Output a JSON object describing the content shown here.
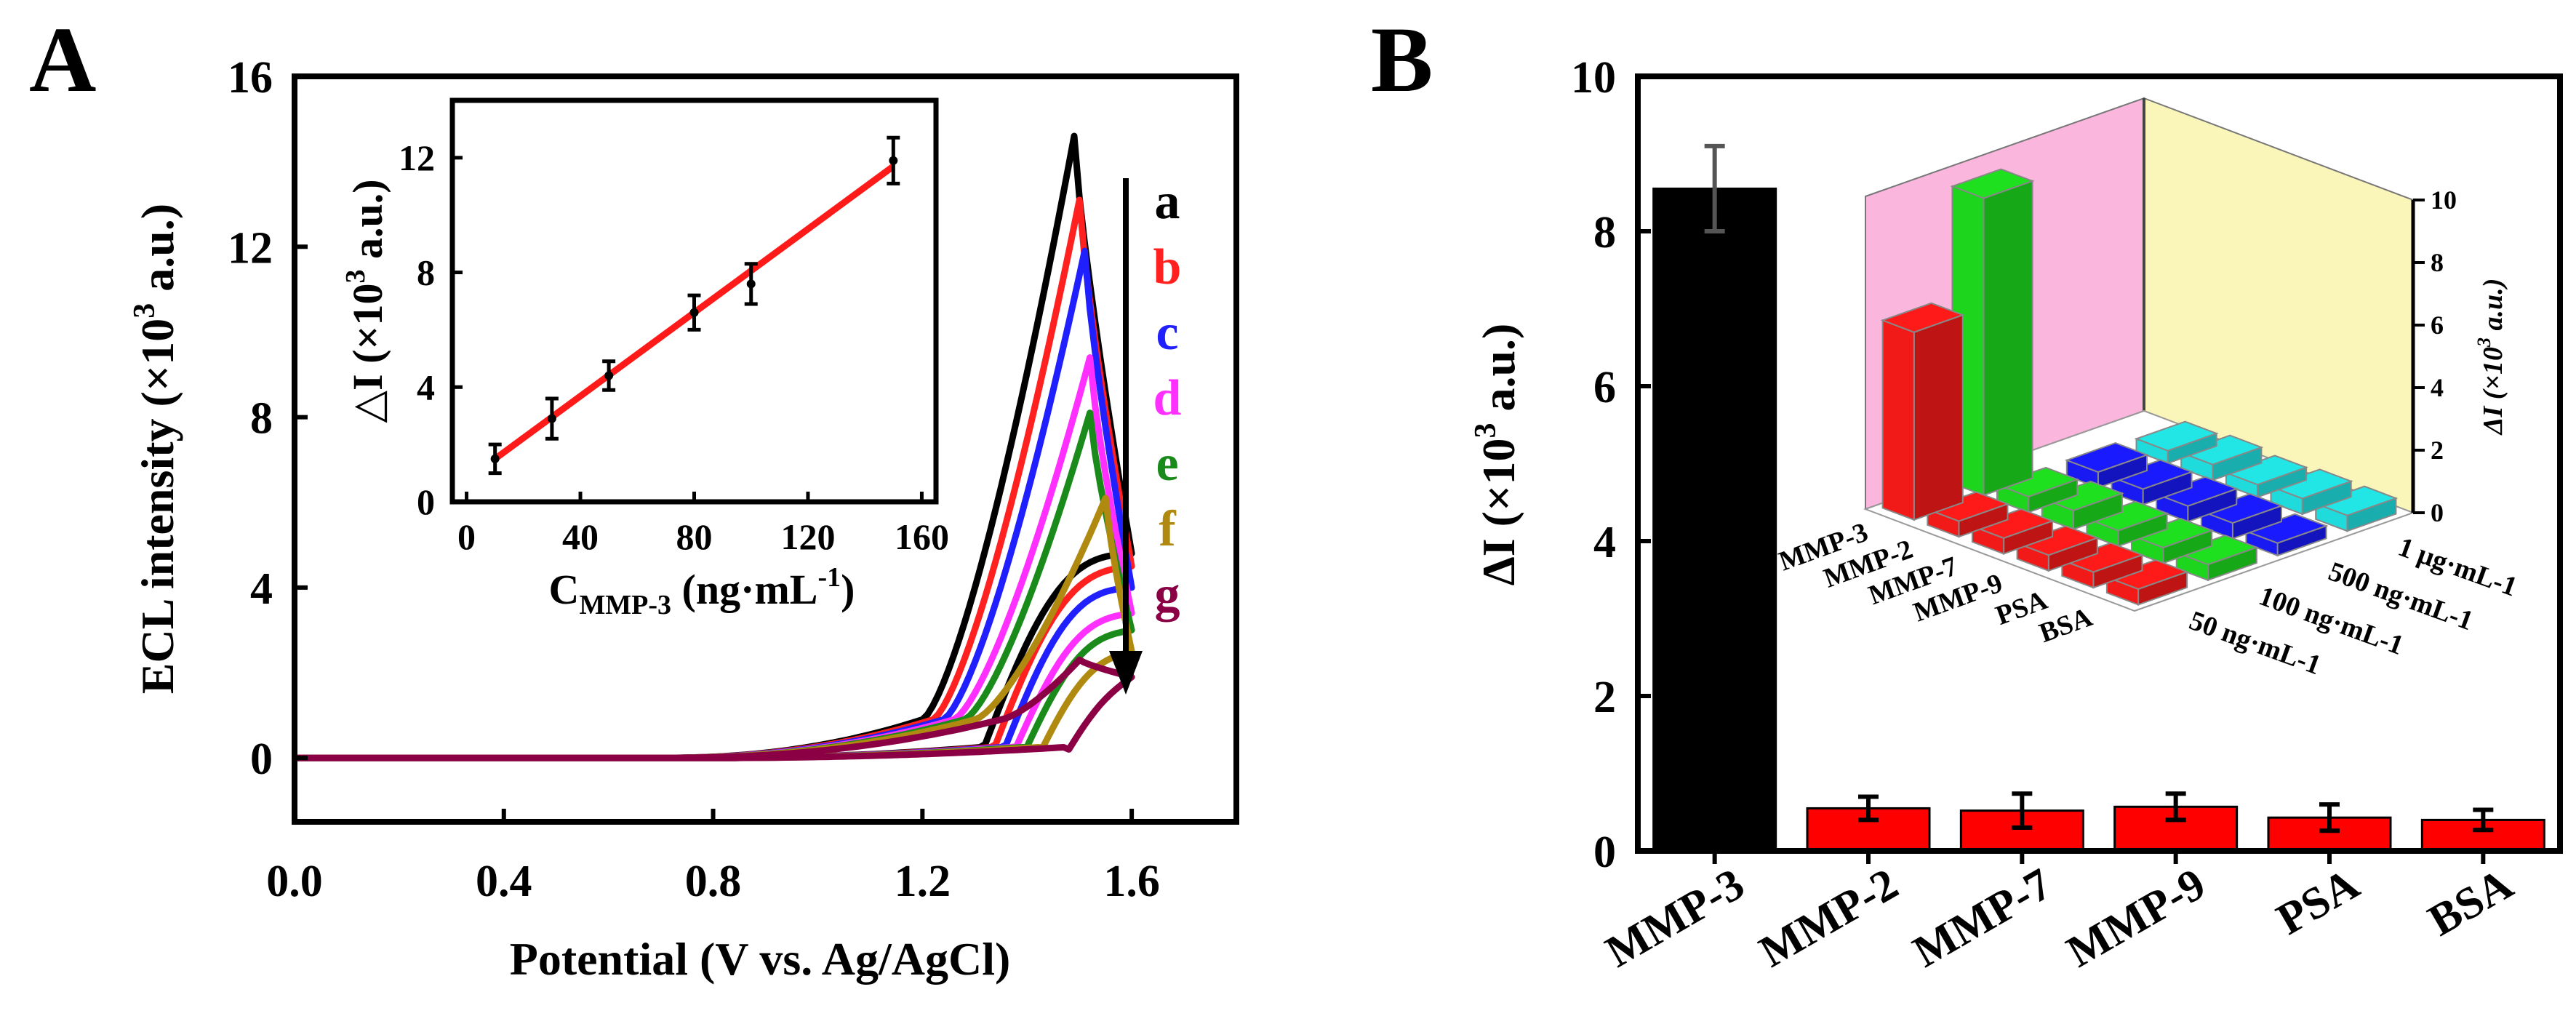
{
  "panels": {
    "A": {
      "label": "A"
    },
    "B": {
      "label": "B"
    }
  },
  "chart_data": [
    {
      "id": "A-main",
      "type": "line",
      "title": "",
      "xlabel": "Potential (V vs. Ag/AgCl)",
      "ylabel_prefix": "ECL intensity (×10",
      "ylabel_sup": "3",
      "ylabel_suffix": " a.u.)",
      "xlim": [
        0,
        1.8
      ],
      "ylim": [
        -1.5,
        16
      ],
      "xticks": [
        0,
        0.4,
        0.8,
        1.2,
        1.6
      ],
      "xtick_labels": [
        "0.0",
        "0.4",
        "0.8",
        "1.2",
        "1.6"
      ],
      "yticks": [
        0,
        4,
        8,
        12,
        16
      ],
      "ytick_labels": [
        "0",
        "4",
        "8",
        "12",
        "16"
      ],
      "series": [
        {
          "name": "a",
          "color": "#000000",
          "peak": 14.6,
          "peak_x": 1.49,
          "end": 4.8,
          "onset": 1.2,
          "return_x": 1.31
        },
        {
          "name": "b",
          "color": "#ff2020",
          "peak": 13.1,
          "peak_x": 1.5,
          "end": 4.5,
          "onset": 1.22,
          "return_x": 1.33
        },
        {
          "name": "c",
          "color": "#2020ff",
          "peak": 11.9,
          "peak_x": 1.51,
          "end": 4.0,
          "onset": 1.24,
          "return_x": 1.35
        },
        {
          "name": "d",
          "color": "#ff30ff",
          "peak": 9.4,
          "peak_x": 1.52,
          "end": 3.4,
          "onset": 1.26,
          "return_x": 1.37
        },
        {
          "name": "e",
          "color": "#1a8a1a",
          "peak": 8.1,
          "peak_x": 1.52,
          "end": 3.0,
          "onset": 1.28,
          "return_x": 1.39
        },
        {
          "name": "f",
          "color": "#b08a10",
          "peak": 6.1,
          "peak_x": 1.55,
          "end": 2.5,
          "onset": 1.3,
          "return_x": 1.42
        },
        {
          "name": "g",
          "color": "#8b0045",
          "peak": 2.3,
          "peak_x": 1.5,
          "end": 1.9,
          "onset": 1.35,
          "return_x": 1.47
        }
      ],
      "trend": "decreasing from a to g"
    },
    {
      "id": "A-inset",
      "type": "scatter",
      "xlabel_main": "C",
      "xlabel_sub": "MMP-3",
      "xlabel_rest": " (ng·mL",
      "xlabel_sup": "-1",
      "xlabel_end": ")",
      "ylabel_prefix": "△I (×10",
      "ylabel_sup": "3",
      "ylabel_suffix": " a.u.)",
      "xlim": [
        -5,
        165
      ],
      "ylim": [
        0,
        14
      ],
      "xticks": [
        0,
        40,
        80,
        120,
        160
      ],
      "xtick_labels": [
        "0",
        "40",
        "80",
        "120",
        "160"
      ],
      "yticks": [
        0,
        4,
        8,
        12
      ],
      "ytick_labels": [
        "0",
        "4",
        "8",
        "12"
      ],
      "x": [
        10,
        30,
        50,
        80,
        100,
        150
      ],
      "y": [
        1.5,
        2.9,
        4.4,
        6.6,
        7.6,
        11.9
      ],
      "err": [
        0.5,
        0.7,
        0.5,
        0.6,
        0.7,
        0.8
      ],
      "fit": {
        "x": [
          10,
          150
        ],
        "y": [
          1.5,
          11.7
        ],
        "color": "#ff1a1a"
      }
    },
    {
      "id": "B-main",
      "type": "bar",
      "ylabel_prefix": "ΔI (×10",
      "ylabel_sup": "3",
      "ylabel_suffix": " a.u.)",
      "ylim": [
        0,
        10
      ],
      "yticks": [
        0,
        2,
        4,
        6,
        8,
        10
      ],
      "ytick_labels": [
        "0",
        "2",
        "4",
        "6",
        "8",
        "10"
      ],
      "categories": [
        "MMP-3",
        "MMP-2",
        "MMP-7",
        "MMP-9",
        "PSA",
        "BSA"
      ],
      "values": [
        8.55,
        0.55,
        0.52,
        0.57,
        0.43,
        0.4
      ],
      "errors": [
        0.55,
        0.15,
        0.22,
        0.17,
        0.17,
        0.13
      ],
      "colors": [
        "#000000",
        "#ff0000",
        "#ff0000",
        "#ff0000",
        "#ff0000",
        "#ff0000"
      ]
    },
    {
      "id": "B-inset-3d",
      "type": "bar",
      "zlabel_prefix": "ΔI (×10",
      "zlabel_sup": "3",
      "zlabel_suffix": " a.u.)",
      "zlim": [
        0,
        10
      ],
      "zticks": [
        0,
        2,
        4,
        6,
        8,
        10
      ],
      "ztick_labels": [
        "0",
        "2",
        "4",
        "6",
        "8",
        "10"
      ],
      "proteins": [
        "MMP-3",
        "MMP-2",
        "MMP-7",
        "MMP-9",
        "PSA",
        "BSA"
      ],
      "concentrations": [
        "50 ng·mL-1",
        "100 ng·mL-1",
        "500 ng·mL-1",
        "1 μg·mL-1"
      ],
      "concentration_colors": [
        "#ff1a1a",
        "#1ee01e",
        "#1a1aff",
        "#22e6e6"
      ],
      "values": [
        [
          6.0,
          9.5,
          0,
          0
        ],
        [
          0.5,
          0.5,
          0.5,
          0.4
        ],
        [
          0.5,
          0.6,
          0.5,
          0.5
        ],
        [
          0.5,
          0.5,
          0.5,
          0.4
        ],
        [
          0.5,
          0.5,
          0.5,
          0.5
        ],
        [
          0.5,
          0.5,
          0.4,
          0.5
        ]
      ],
      "wall_colors": {
        "back": "#fbb6dd",
        "side": "#faf5b9"
      }
    }
  ]
}
